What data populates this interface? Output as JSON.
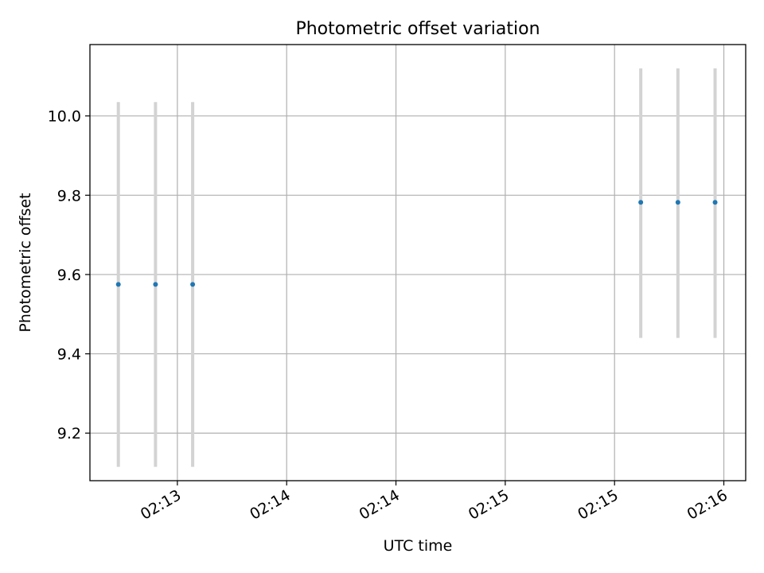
{
  "chart_data": {
    "type": "scatter",
    "title": "Photometric offset variation",
    "xlabel": "UTC time",
    "ylabel": "Photometric offset",
    "x_ticks": [
      {
        "t": 0.4,
        "label": "02:13"
      },
      {
        "t": 0.9,
        "label": "02:14"
      },
      {
        "t": 1.4,
        "label": "02:14"
      },
      {
        "t": 1.9,
        "label": "02:15"
      },
      {
        "t": 2.4,
        "label": "02:15"
      },
      {
        "t": 2.9,
        "label": "02:16"
      }
    ],
    "y_ticks": [
      9.2,
      9.4,
      9.6,
      9.8,
      10.0
    ],
    "xlim": [
      0.0,
      3.0
    ],
    "ylim": [
      9.08,
      10.18
    ],
    "grid": true,
    "point_color": "#1f77b4",
    "errorbar_color": "#d3d3d3",
    "points": [
      {
        "t": 0.13,
        "y": 9.575,
        "err_low": 9.115,
        "err_high": 10.035
      },
      {
        "t": 0.3,
        "y": 9.575,
        "err_low": 9.115,
        "err_high": 10.035
      },
      {
        "t": 0.47,
        "y": 9.575,
        "err_low": 9.115,
        "err_high": 10.035
      },
      {
        "t": 2.52,
        "y": 9.782,
        "err_low": 9.44,
        "err_high": 10.12
      },
      {
        "t": 2.69,
        "y": 9.782,
        "err_low": 9.44,
        "err_high": 10.12
      },
      {
        "t": 2.86,
        "y": 9.782,
        "err_low": 9.44,
        "err_high": 10.12
      }
    ]
  }
}
